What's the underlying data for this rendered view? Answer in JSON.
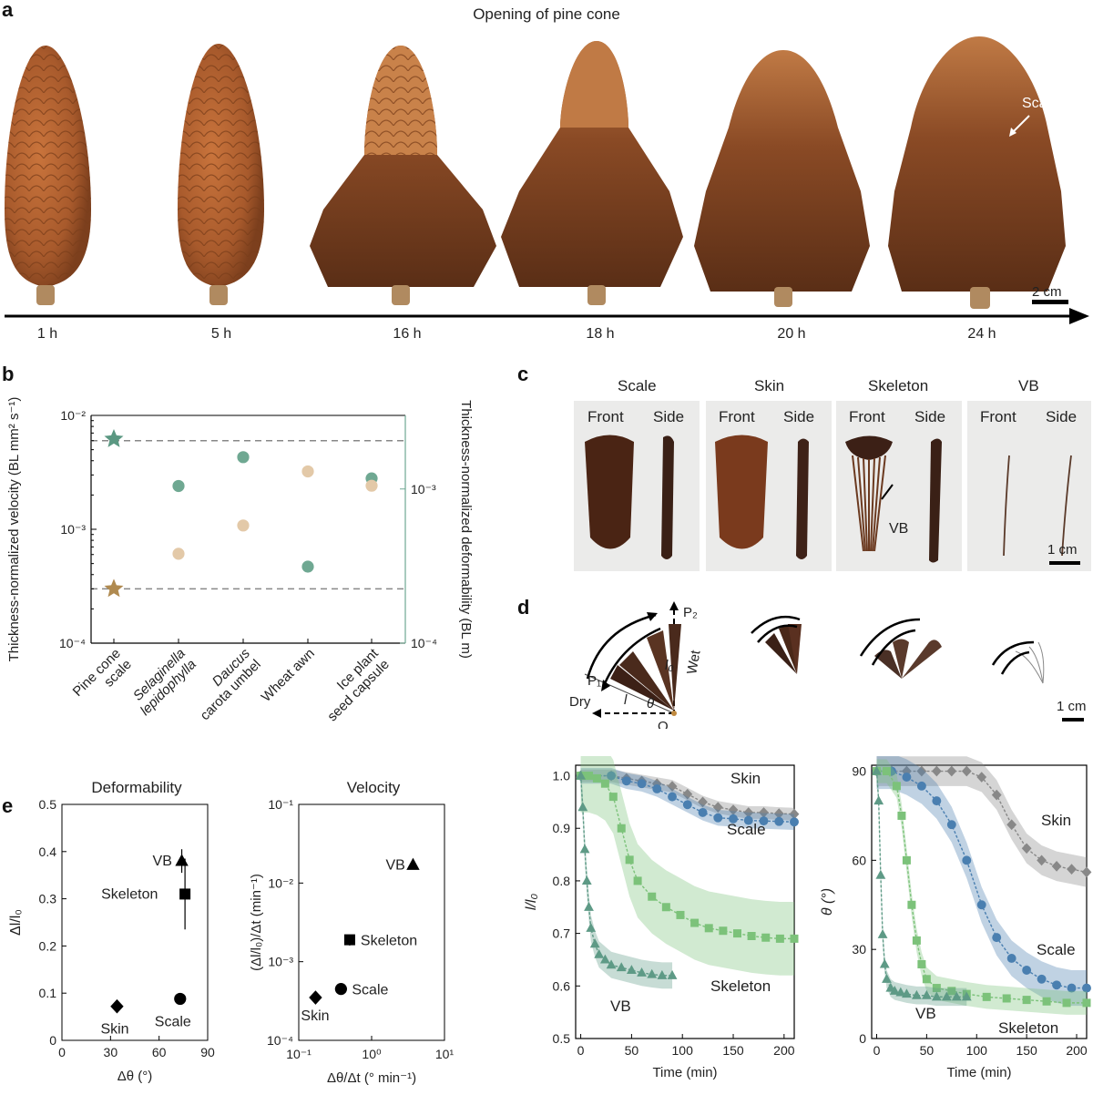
{
  "panel_a": {
    "label": "a",
    "title": "Opening of pine cone",
    "scale_annotation": "Scale",
    "scale_bar": "2 cm",
    "hours": [
      "1 h",
      "5 h",
      "16 h",
      "18 h",
      "20 h",
      "24 h"
    ]
  },
  "panel_b": {
    "label": "b",
    "ylabel_left": "Thickness-normalized velocity (BL mm² s⁻¹)",
    "ylabel_right": "Thickness-normalized deformability (BL m)",
    "left_ticks": [
      "10⁻²",
      "10⁻³",
      "10⁻⁴"
    ],
    "right_ticks": [
      "10⁻³",
      "10⁻⁴"
    ],
    "categories": [
      "Pine cone scale",
      "Selaginella lepidophylla",
      "Daucus carota umbel",
      "Wheat awn",
      "Ice plant seed capsule"
    ],
    "cat_lines": [
      [
        "Pine cone",
        "scale"
      ],
      [
        "Selaginella",
        "lepidophylla"
      ],
      [
        "Daucus",
        "carota umbel"
      ],
      [
        "Wheat awn"
      ],
      [
        "Ice plant",
        "seed capsule"
      ]
    ],
    "colors": {
      "velocity": "#6fa892",
      "deformability": "#e3c9a8",
      "star_v": "#5b9882",
      "star_d": "#b08a50"
    }
  },
  "panel_c": {
    "label": "c",
    "groups": [
      {
        "title": "Scale",
        "front": "Front",
        "side": "Side"
      },
      {
        "title": "Skin",
        "front": "Front",
        "side": "Side"
      },
      {
        "title": "Skeleton",
        "front": "Front",
        "side": "Side"
      },
      {
        "title": "VB",
        "front": "Front",
        "side": "Side"
      }
    ],
    "vb_annotation": "VB",
    "scale_bar": "1 cm"
  },
  "panel_d": {
    "label": "d",
    "diagram": {
      "p1": "P₁",
      "p2": "P₂",
      "l0": "l₀",
      "l": "l",
      "theta": "θ",
      "o": "O",
      "dry": "Dry",
      "wet": "Wet"
    },
    "scale_bar": "1 cm"
  },
  "panel_e": {
    "label": "e",
    "left_title": "Deformability",
    "right_title": "Velocity"
  },
  "chart_data": [
    {
      "id": "b",
      "type": "scatter",
      "title": "",
      "categories": [
        "Pine cone scale",
        "Selaginella lepidophylla",
        "Daucus carota umbel",
        "Wheat awn",
        "Ice plant seed capsule"
      ],
      "series": [
        {
          "name": "Thickness-normalized velocity",
          "axis": "left",
          "values": [
            0.0062,
            0.0024,
            0.0043,
            0.00047,
            0.0028
          ],
          "marker": [
            "star",
            "circle",
            "circle",
            "circle",
            "circle"
          ]
        },
        {
          "name": "Thickness-normalized deformability",
          "axis": "right",
          "values": [
            0.00025,
            0.00038,
            0.00058,
            0.0013,
            0.00105
          ],
          "marker": [
            "star",
            "circle",
            "circle",
            "circle",
            "circle"
          ]
        }
      ],
      "ylim_left": [
        0.0001,
        0.01
      ],
      "ylim_right": [
        0.0001,
        0.003
      ],
      "yscale": "log",
      "reference_lines": [
        0.006,
        0.0003
      ]
    },
    {
      "id": "d1",
      "type": "line",
      "xlabel": "Time (min)",
      "ylabel": "l/l₀",
      "xlim": [
        -5,
        210
      ],
      "ylim": [
        0.5,
        1.02
      ],
      "xticks": [
        0,
        50,
        100,
        150,
        200
      ],
      "yticks": [
        0.5,
        0.6,
        0.7,
        0.8,
        0.9,
        1.0
      ],
      "series": [
        {
          "name": "Skin",
          "color": "#888888",
          "marker": "diamond",
          "x": [
            0,
            30,
            45,
            60,
            75,
            90,
            105,
            120,
            135,
            150,
            165,
            180,
            195,
            210
          ],
          "y": [
            1.0,
            1.0,
            0.995,
            0.99,
            0.985,
            0.98,
            0.965,
            0.95,
            0.94,
            0.935,
            0.93,
            0.93,
            0.928,
            0.927
          ],
          "band": 0.012
        },
        {
          "name": "Scale",
          "color": "#4a7fb0",
          "marker": "circle",
          "x": [
            0,
            30,
            45,
            60,
            75,
            90,
            105,
            120,
            135,
            150,
            165,
            180,
            195,
            210
          ],
          "y": [
            1.0,
            1.0,
            0.99,
            0.985,
            0.975,
            0.96,
            0.945,
            0.93,
            0.92,
            0.918,
            0.915,
            0.914,
            0.913,
            0.912
          ],
          "band": 0.015
        },
        {
          "name": "Skeleton",
          "color": "#7cc27a",
          "marker": "square",
          "x": [
            0,
            8,
            16,
            24,
            32,
            40,
            48,
            56,
            70,
            84,
            98,
            112,
            126,
            140,
            154,
            168,
            182,
            196,
            210
          ],
          "y": [
            1.0,
            1.0,
            0.995,
            0.985,
            0.96,
            0.9,
            0.84,
            0.8,
            0.77,
            0.75,
            0.735,
            0.72,
            0.71,
            0.705,
            0.7,
            0.695,
            0.692,
            0.69,
            0.69
          ],
          "band": 0.07
        },
        {
          "name": "VB",
          "color": "#5e9a86",
          "marker": "triangle",
          "x": [
            0,
            2,
            4,
            6,
            8,
            10,
            14,
            18,
            24,
            30,
            40,
            50,
            60,
            70,
            80,
            90
          ],
          "y": [
            1.0,
            0.94,
            0.86,
            0.8,
            0.75,
            0.71,
            0.68,
            0.66,
            0.65,
            0.64,
            0.635,
            0.63,
            0.625,
            0.622,
            0.62,
            0.62
          ],
          "band": 0.025
        }
      ]
    },
    {
      "id": "d2",
      "type": "line",
      "xlabel": "Time (min)",
      "ylabel": "θ (°)",
      "xlim": [
        -5,
        210
      ],
      "ylim": [
        0,
        92
      ],
      "xticks": [
        0,
        50,
        100,
        150,
        200
      ],
      "yticks": [
        0,
        30,
        60,
        90
      ],
      "series": [
        {
          "name": "Skin",
          "color": "#888888",
          "marker": "diamond",
          "x": [
            0,
            15,
            30,
            45,
            60,
            75,
            90,
            105,
            120,
            135,
            150,
            165,
            180,
            195,
            210
          ],
          "y": [
            90,
            90,
            90,
            90,
            90,
            90,
            90,
            88,
            82,
            72,
            64,
            60,
            58,
            57,
            56
          ],
          "band": 5
        },
        {
          "name": "Scale",
          "color": "#4a7fb0",
          "marker": "circle",
          "x": [
            0,
            15,
            30,
            45,
            60,
            75,
            90,
            105,
            120,
            135,
            150,
            165,
            180,
            195,
            210
          ],
          "y": [
            90,
            90,
            88,
            85,
            80,
            72,
            60,
            45,
            34,
            27,
            23,
            20,
            18,
            17,
            17
          ],
          "band": 6
        },
        {
          "name": "Skeleton",
          "color": "#7cc27a",
          "marker": "square",
          "x": [
            0,
            10,
            20,
            25,
            30,
            35,
            40,
            45,
            50,
            60,
            75,
            90,
            110,
            130,
            150,
            170,
            190,
            210
          ],
          "y": [
            90,
            90,
            85,
            75,
            60,
            45,
            33,
            25,
            20,
            17,
            16,
            15,
            14,
            13.5,
            13,
            12.5,
            12,
            12
          ],
          "band": 4
        },
        {
          "name": "VB",
          "color": "#5e9a86",
          "marker": "triangle",
          "x": [
            0,
            2,
            4,
            6,
            8,
            10,
            14,
            18,
            24,
            30,
            40,
            50,
            60,
            70,
            80,
            90
          ],
          "y": [
            90,
            80,
            55,
            35,
            25,
            20,
            17,
            16,
            15.5,
            15,
            14.5,
            14.5,
            14,
            14,
            14,
            14
          ],
          "band": 3
        }
      ]
    },
    {
      "id": "e1",
      "type": "scatter",
      "title": "Deformability",
      "xlabel": "Δθ (°)",
      "ylabel": "Δl/l₀",
      "xlim": [
        0,
        90
      ],
      "ylim": [
        0,
        0.5
      ],
      "xticks": [
        0,
        30,
        60,
        90
      ],
      "yticks": [
        0,
        0.1,
        0.2,
        0.3,
        0.4,
        0.5
      ],
      "points": [
        {
          "name": "VB",
          "marker": "triangle",
          "x": 74,
          "y": 0.38,
          "yerr": 0.025
        },
        {
          "name": "Skeleton",
          "marker": "square",
          "x": 76,
          "y": 0.31,
          "xerr": 2,
          "yerr": 0.075
        },
        {
          "name": "Skin",
          "marker": "diamond",
          "x": 34,
          "y": 0.072
        },
        {
          "name": "Scale",
          "marker": "circle",
          "x": 73,
          "y": 0.088
        }
      ]
    },
    {
      "id": "e2",
      "type": "scatter",
      "title": "Velocity",
      "xlabel": "Δθ/Δt (° min⁻¹)",
      "ylabel": "(Δl/l₀)/Δt (min⁻¹)",
      "xscale": "log",
      "yscale": "log",
      "xlim": [
        0.1,
        10
      ],
      "ylim": [
        0.0001,
        0.1
      ],
      "points": [
        {
          "name": "VB",
          "marker": "triangle",
          "x": 3.7,
          "y": 0.017
        },
        {
          "name": "Skeleton",
          "marker": "square",
          "x": 0.5,
          "y": 0.0019,
          "yerr": 0.0003
        },
        {
          "name": "Scale",
          "marker": "circle",
          "x": 0.38,
          "y": 0.00045
        },
        {
          "name": "Skin",
          "marker": "diamond",
          "x": 0.17,
          "y": 0.00035
        }
      ]
    }
  ]
}
